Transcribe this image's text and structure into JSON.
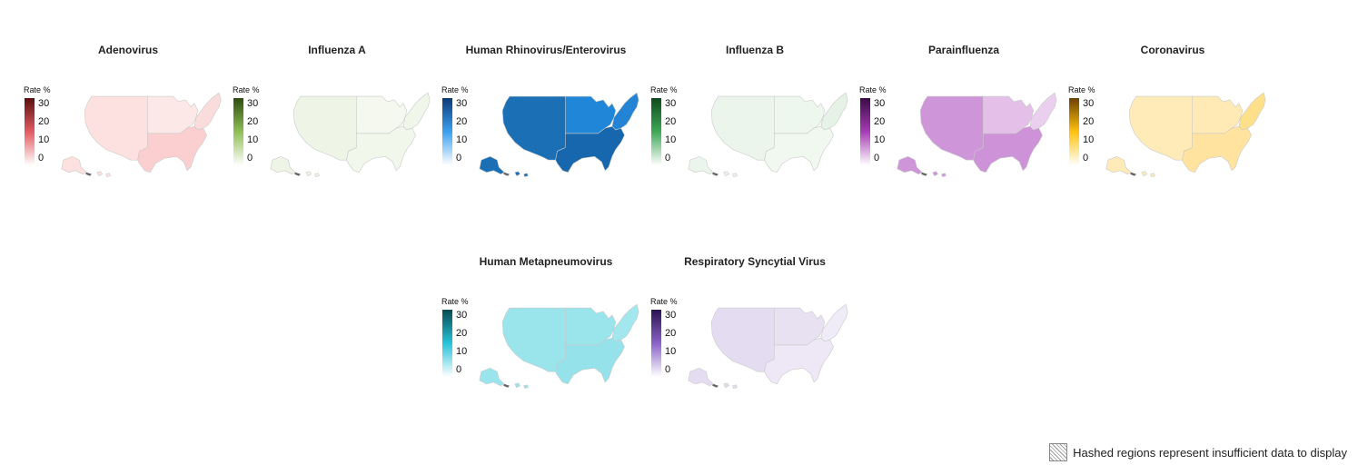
{
  "legend_title": "Rate %",
  "legend_ticks": [
    "30",
    "20",
    "10",
    "0"
  ],
  "footer_note": "Hashed regions represent insufficient data to display",
  "panels": [
    {
      "title": "Adenovirus",
      "ramp": [
        "#ffffff",
        "#e35b62",
        "#5a1010"
      ],
      "regions": {
        "west": "#fde0e0",
        "midwest": "#fde8e8",
        "northeast": "#fbdcdc",
        "south": "#fbcfd0"
      }
    },
    {
      "title": "Influenza A",
      "ramp": [
        "#ffffff",
        "#8fbf55",
        "#2f4d10"
      ],
      "regions": {
        "west": "#eef4e6",
        "midwest": "#f4f8ef",
        "northeast": "#f1f6ea",
        "south": "#f2f7ec"
      }
    },
    {
      "title": "Human Rhinovirus/Enterovirus",
      "ramp": [
        "#ffffff",
        "#3aa0f0",
        "#0d3a78"
      ],
      "regions": {
        "west": "#1a6fb5",
        "midwest": "#2087d8",
        "northeast": "#2384d5",
        "south": "#1667ae"
      }
    },
    {
      "title": "Influenza B",
      "ramp": [
        "#ffffff",
        "#3ea855",
        "#0e4a1c"
      ],
      "regions": {
        "west": "#ecf5ec",
        "midwest": "#eef7ee",
        "northeast": "#e6f2e6",
        "south": "#f0f8f0"
      }
    },
    {
      "title": "Parainfluenza",
      "ramp": [
        "#ffffff",
        "#a63cb5",
        "#3a0a45"
      ],
      "regions": {
        "west": "#cf95d9",
        "midwest": "#e4c0e9",
        "northeast": "#ead0ee",
        "south": "#cd92d7"
      }
    },
    {
      "title": "Coronavirus",
      "ramp": [
        "#ffffff",
        "#ffc20e",
        "#6b4200"
      ],
      "regions": {
        "west": "#ffebb8",
        "midwest": "#ffeab5",
        "northeast": "#ffe08a",
        "south": "#ffe39e"
      }
    },
    {
      "title": "Human Metapneumovirus",
      "ramp": [
        "#ffffff",
        "#27c3d9",
        "#0a4a52"
      ],
      "regions": {
        "west": "#9ae4ec",
        "midwest": "#9ae4ec",
        "northeast": "#a3e7ee",
        "south": "#96e2ea"
      }
    },
    {
      "title": "Respiratory Syncytial Virus",
      "ramp": [
        "#ffffff",
        "#8a63c8",
        "#2a1250"
      ],
      "regions": {
        "west": "#e4dcf0",
        "midwest": "#e8e1f2",
        "northeast": "#f0ecf7",
        "south": "#ede7f6"
      }
    }
  ]
}
